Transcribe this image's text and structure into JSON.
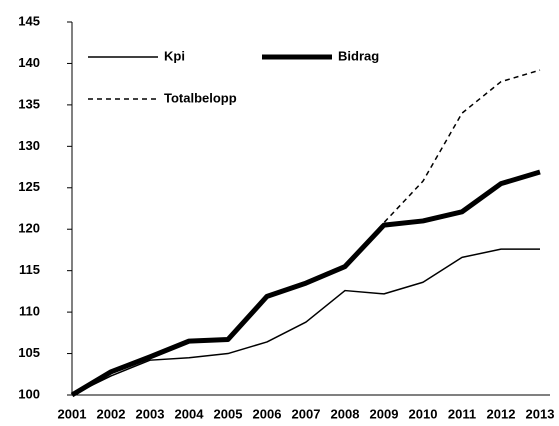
{
  "chart_data": {
    "type": "line",
    "categories": [
      "2001",
      "2002",
      "2003",
      "2004",
      "2005",
      "2006",
      "2007",
      "2008",
      "2009",
      "2010",
      "2011",
      "2012",
      "2013"
    ],
    "series": [
      {
        "name": "Kpi",
        "color": "#000000",
        "width": 1.5,
        "dashed": false,
        "values": [
          100,
          102.3,
          104.2,
          104.5,
          105,
          106.4,
          108.8,
          112.6,
          112.2,
          113.6,
          116.6,
          117.6,
          117.6
        ]
      },
      {
        "name": "Bidrag",
        "color": "#000000",
        "width": 5,
        "dashed": false,
        "values": [
          100,
          102.8,
          104.6,
          106.5,
          106.7,
          111.9,
          113.5,
          115.5,
          120.5,
          121,
          122.1,
          125.5,
          126.9
        ]
      },
      {
        "name": "Totalbelopp",
        "color": "#000000",
        "width": 1.5,
        "dashed": true,
        "values": [
          100,
          102.6,
          104.5,
          106.4,
          106.6,
          112,
          113.7,
          115.7,
          120.8,
          125.8,
          134,
          137.8,
          139.2
        ]
      }
    ],
    "ylim": [
      100,
      145
    ],
    "yticks": [
      100,
      105,
      110,
      115,
      120,
      125,
      130,
      135,
      140,
      145
    ],
    "grid": false,
    "legend": "top-left"
  }
}
